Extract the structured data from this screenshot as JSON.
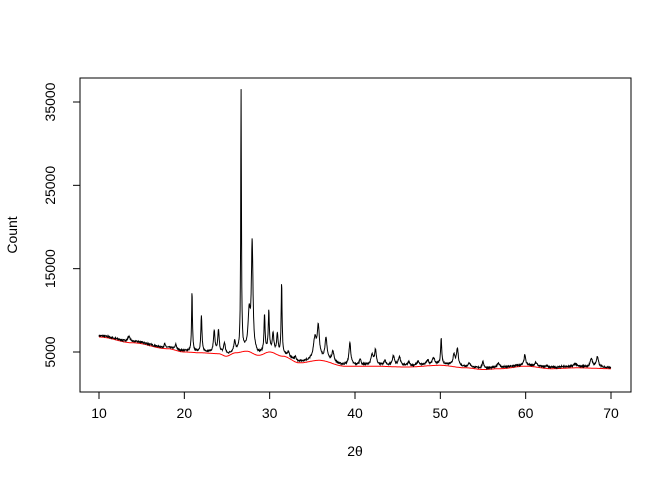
{
  "chart_data": {
    "type": "line",
    "title": "",
    "xlabel": "2θ",
    "ylabel": "Count",
    "xlim": [
      10,
      70
    ],
    "ylim": [
      1500,
      37500
    ],
    "xticks": [
      10,
      20,
      30,
      40,
      50,
      60,
      70
    ],
    "yticks": [
      5000,
      15000,
      25000,
      35000
    ],
    "grid": false,
    "colors": {
      "pattern": "#000000",
      "background_fit": "#ff0000"
    },
    "series": [
      {
        "role": "pattern",
        "peaks": [
          [
            13.5,
            6900,
            0.3
          ],
          [
            17.7,
            6000,
            0.15
          ],
          [
            19.0,
            5900,
            0.2
          ],
          [
            20.9,
            12200,
            0.12
          ],
          [
            22.0,
            9300,
            0.15
          ],
          [
            23.5,
            7500,
            0.2
          ],
          [
            24.0,
            7500,
            0.2
          ],
          [
            24.7,
            6000,
            0.25
          ],
          [
            25.9,
            6300,
            0.2
          ],
          [
            26.65,
            36300,
            0.1
          ],
          [
            27.6,
            9500,
            0.3
          ],
          [
            27.95,
            17900,
            0.22
          ],
          [
            29.4,
            9400,
            0.15
          ],
          [
            29.9,
            9800,
            0.15
          ],
          [
            30.4,
            7200,
            0.2
          ],
          [
            30.9,
            7000,
            0.2
          ],
          [
            31.4,
            13200,
            0.13
          ],
          [
            32.2,
            5000,
            0.2
          ],
          [
            33.0,
            4500,
            0.2
          ],
          [
            35.3,
            6500,
            0.4
          ],
          [
            35.7,
            7900,
            0.3
          ],
          [
            36.6,
            6500,
            0.3
          ],
          [
            37.4,
            5000,
            0.3
          ],
          [
            39.4,
            6100,
            0.25
          ],
          [
            40.6,
            4200,
            0.2
          ],
          [
            42.0,
            4600,
            0.3
          ],
          [
            42.4,
            5200,
            0.25
          ],
          [
            43.5,
            4000,
            0.2
          ],
          [
            44.5,
            4500,
            0.3
          ],
          [
            45.2,
            4400,
            0.3
          ],
          [
            46.3,
            3800,
            0.25
          ],
          [
            47.4,
            3900,
            0.25
          ],
          [
            48.5,
            4000,
            0.3
          ],
          [
            49.2,
            4300,
            0.3
          ],
          [
            50.1,
            6700,
            0.15
          ],
          [
            51.6,
            4600,
            0.3
          ],
          [
            52.0,
            5300,
            0.25
          ],
          [
            53.4,
            3700,
            0.25
          ],
          [
            55.0,
            3800,
            0.25
          ],
          [
            56.8,
            3700,
            0.3
          ],
          [
            59.9,
            4700,
            0.2
          ],
          [
            61.2,
            3700,
            0.3
          ],
          [
            62.5,
            3400,
            0.3
          ],
          [
            64.3,
            3300,
            0.3
          ],
          [
            65.8,
            3600,
            0.4
          ],
          [
            67.7,
            4200,
            0.3
          ],
          [
            68.4,
            4400,
            0.3
          ],
          [
            69.7,
            3100,
            0.2
          ]
        ]
      },
      {
        "role": "background_fit",
        "x": [
          10,
          14,
          18,
          20,
          22,
          24,
          24.9,
          26,
          27.3,
          28.7,
          30,
          31.5,
          33.5,
          35.8,
          38.8,
          42,
          46,
          50,
          53,
          55,
          57,
          60,
          63,
          66,
          70
        ],
        "y": [
          6800,
          6100,
          5400,
          5000,
          4900,
          4800,
          4500,
          4900,
          5100,
          4600,
          5000,
          4500,
          3700,
          4000,
          3300,
          3300,
          3200,
          3400,
          3100,
          2900,
          3000,
          3300,
          3000,
          3100,
          3000
        ]
      }
    ]
  }
}
